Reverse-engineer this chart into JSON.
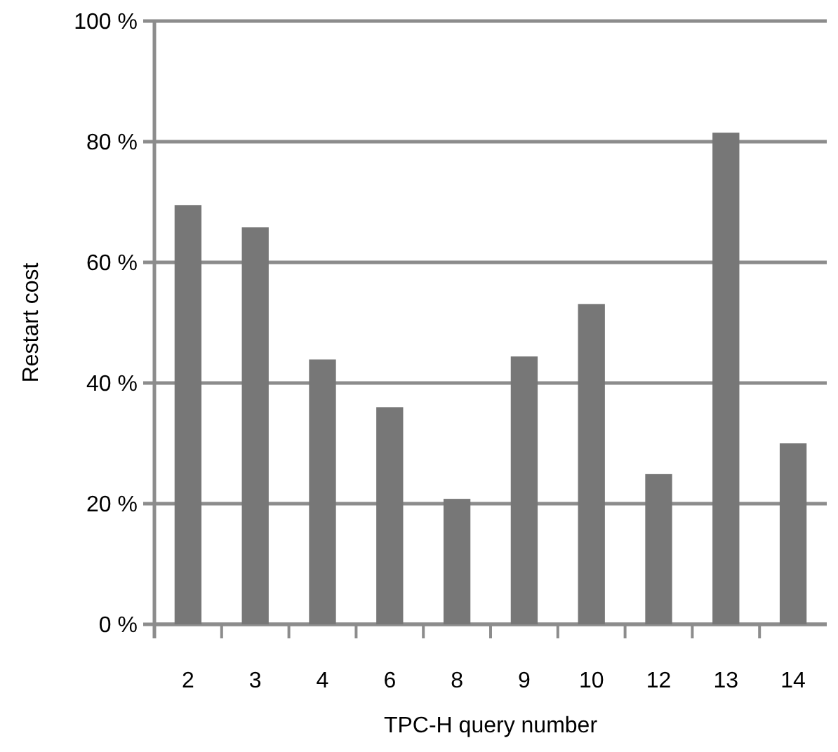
{
  "chart_data": {
    "type": "bar",
    "xlabel": "TPC-H query number",
    "ylabel": "Restart cost",
    "categories": [
      "2",
      "3",
      "4",
      "6",
      "8",
      "9",
      "10",
      "12",
      "13",
      "14"
    ],
    "values": [
      69.5,
      65.8,
      43.9,
      36.0,
      20.8,
      44.4,
      53.1,
      24.9,
      81.5,
      30.0
    ],
    "color": "#777777",
    "ylim": [
      0,
      100
    ],
    "yticks": [
      {
        "value": 0,
        "label": "0 %"
      },
      {
        "value": 20,
        "label": "20 %"
      },
      {
        "value": 40,
        "label": "40 %"
      },
      {
        "value": 60,
        "label": "60 %"
      },
      {
        "value": 80,
        "label": "80 %"
      },
      {
        "value": 100,
        "label": "100 %"
      }
    ],
    "grid": "y"
  }
}
